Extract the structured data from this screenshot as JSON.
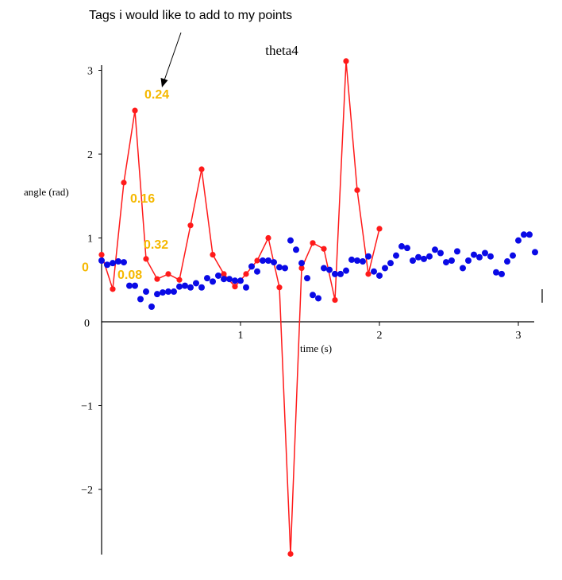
{
  "annotation": {
    "text": "Tags i would like to add to my points"
  },
  "colors": {
    "red": "#ff1a1a",
    "blue": "#0a0ae6",
    "tag": "#f5b800",
    "axis": "#000000"
  },
  "chart_data": {
    "type": "scatter",
    "title": "theta4",
    "xlabel": "time (s)",
    "ylabel": "angle (rad)",
    "xlim": [
      0,
      3.1
    ],
    "ylim": [
      -2.75,
      3.1
    ],
    "x_ticks": [
      1,
      2,
      3
    ],
    "y_ticks": [
      -2,
      -1,
      0,
      1,
      2,
      3
    ],
    "grid": false,
    "series": [
      {
        "color": "#ff1a1a",
        "style": "line+markers",
        "x": [
          0,
          0.08,
          0.16,
          0.24,
          0.32,
          0.4,
          0.48,
          0.56,
          0.64,
          0.72,
          0.8,
          0.88,
          0.96,
          1.04,
          1.12,
          1.2,
          1.28,
          1.36,
          1.44,
          1.52,
          1.6,
          1.68,
          1.76,
          1.84,
          1.92,
          2.0
        ],
        "y": [
          0.8,
          0.39,
          1.66,
          2.52,
          0.75,
          0.51,
          0.57,
          0.5,
          1.15,
          1.82,
          0.8,
          0.57,
          0.42,
          0.57,
          0.73,
          1.0,
          0.41,
          -2.77,
          0.64,
          0.94,
          0.87,
          0.26,
          3.11,
          1.57,
          0.57,
          1.11
        ]
      },
      {
        "color": "#0a0ae6",
        "style": "markers",
        "x": [
          0.0,
          0.04,
          0.08,
          0.12,
          0.16,
          0.2,
          0.24,
          0.28,
          0.32,
          0.36,
          0.4,
          0.44,
          0.48,
          0.52,
          0.56,
          0.6,
          0.64,
          0.68,
          0.72,
          0.76,
          0.8,
          0.84,
          0.88,
          0.92,
          0.96,
          1.0,
          1.04,
          1.08,
          1.12,
          1.16,
          1.2,
          1.24,
          1.28,
          1.32,
          1.36,
          1.4,
          1.44,
          1.48,
          1.52,
          1.56,
          1.6,
          1.64,
          1.68,
          1.72,
          1.76,
          1.8,
          1.84,
          1.88,
          1.92,
          1.96,
          2.0,
          2.04,
          2.08,
          2.12,
          2.16,
          2.2,
          2.24,
          2.28,
          2.32,
          2.36,
          2.4,
          2.44,
          2.48,
          2.52,
          2.56,
          2.6,
          2.64,
          2.68,
          2.72,
          2.76,
          2.8,
          2.84,
          2.88,
          2.92,
          2.96,
          3.0,
          3.04,
          3.08,
          3.12
        ],
        "y": [
          0.73,
          0.68,
          0.7,
          0.72,
          0.71,
          0.43,
          0.43,
          0.27,
          0.36,
          0.18,
          0.33,
          0.35,
          0.36,
          0.36,
          0.42,
          0.43,
          0.41,
          0.46,
          0.41,
          0.52,
          0.48,
          0.55,
          0.51,
          0.51,
          0.49,
          0.49,
          0.41,
          0.66,
          0.6,
          0.73,
          0.73,
          0.71,
          0.65,
          0.64,
          0.97,
          0.86,
          0.7,
          0.52,
          0.32,
          0.28,
          0.64,
          0.62,
          0.57,
          0.57,
          0.61,
          0.74,
          0.73,
          0.72,
          0.78,
          0.6,
          0.55,
          0.64,
          0.7,
          0.79,
          0.9,
          0.88,
          0.73,
          0.77,
          0.75,
          0.78,
          0.86,
          0.82,
          0.71,
          0.73,
          0.84,
          0.64,
          0.73,
          0.8,
          0.77,
          0.82,
          0.78,
          0.59,
          0.57,
          0.72,
          0.79,
          0.97,
          1.04,
          1.04,
          0.83
        ]
      }
    ],
    "point_tags": [
      {
        "text": "0",
        "x": 0
      },
      {
        "text": "0.08",
        "x": 0.08
      },
      {
        "text": "0.16",
        "x": 0.16
      },
      {
        "text": "0.24",
        "x": 0.24
      },
      {
        "text": "0.32",
        "x": 0.32
      }
    ]
  }
}
